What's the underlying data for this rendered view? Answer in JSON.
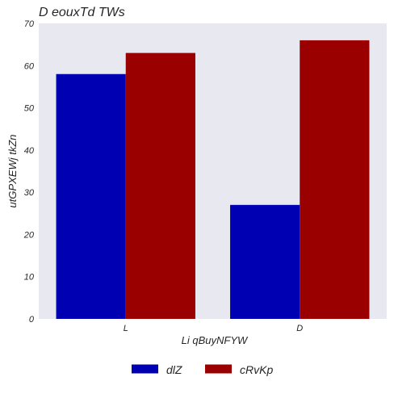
{
  "chart_data": {
    "type": "bar",
    "title": "D eouxTd TWs",
    "xlabel": "Li qBuyNFYW",
    "ylabel": "utGPXEWj tkZn",
    "categories": [
      "L",
      "D"
    ],
    "series": [
      {
        "name": "dlZ",
        "values": [
          58,
          27
        ],
        "color": "#0000b3"
      },
      {
        "name": "cRvKp",
        "values": [
          63,
          66
        ],
        "color": "#9b0000"
      }
    ],
    "ylim": [
      0,
      70
    ],
    "yticks": [
      0,
      10,
      20,
      30,
      40,
      50,
      60,
      70
    ],
    "grid": false,
    "legend": "bottom-center",
    "plot_background": "#e8e8f1"
  }
}
